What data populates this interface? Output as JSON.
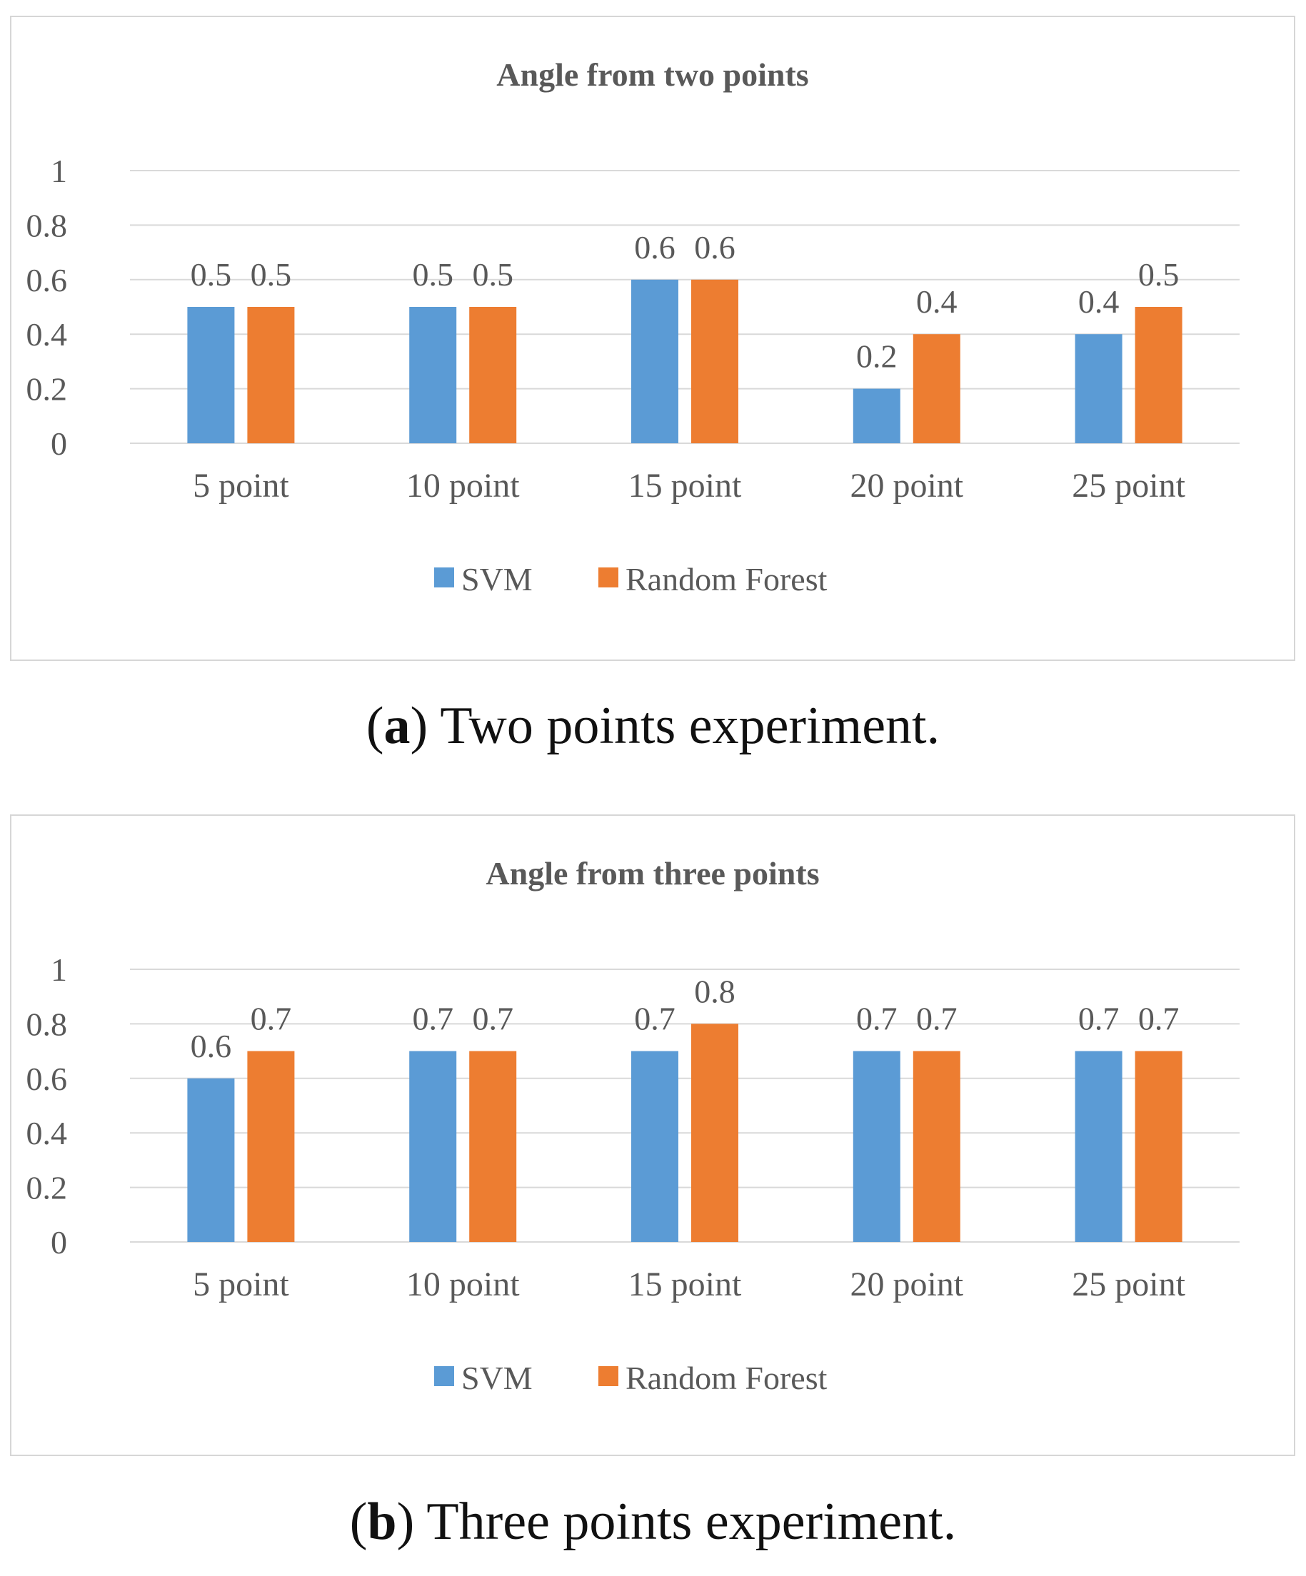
{
  "colors": {
    "svm": "#5b9bd5",
    "rf": "#ed7d31",
    "grid": "#d9d9d9",
    "border": "#d6d6d6",
    "text": "#595959"
  },
  "chart_data": [
    {
      "type": "bar",
      "title": "Angle from two points",
      "categories": [
        "5 point",
        "10 point",
        "15 point",
        "20 point",
        "25 point"
      ],
      "series": [
        {
          "name": "SVM",
          "values": [
            0.5,
            0.5,
            0.6,
            0.2,
            0.4
          ],
          "labels": [
            "0.5",
            "0.5",
            "0.6",
            "0.2",
            "0.4"
          ]
        },
        {
          "name": "Random Forest",
          "values": [
            0.5,
            0.5,
            0.6,
            0.4,
            0.5
          ],
          "labels": [
            "0.5",
            "0.5",
            "0.6",
            "0.4",
            "0.5"
          ]
        }
      ],
      "yticks": [
        "0",
        "0.2",
        "0.4",
        "0.6",
        "0.8",
        "1"
      ],
      "ylim": [
        0,
        1
      ],
      "xlabel": "",
      "ylabel": "",
      "legend": "bottom",
      "grid": true
    },
    {
      "type": "bar",
      "title": "Angle from three points",
      "categories": [
        "5 point",
        "10 point",
        "15 point",
        "20 point",
        "25 point"
      ],
      "series": [
        {
          "name": "SVM",
          "values": [
            0.6,
            0.7,
            0.7,
            0.7,
            0.7
          ],
          "labels": [
            "0.6",
            "0.7",
            "0.7",
            "0.7",
            "0.7"
          ]
        },
        {
          "name": "Random Forest",
          "values": [
            0.7,
            0.7,
            0.8,
            0.7,
            0.7
          ],
          "labels": [
            "0.7",
            "0.7",
            "0.8",
            "0.7",
            "0.7"
          ]
        }
      ],
      "yticks": [
        "0",
        "0.2",
        "0.4",
        "0.6",
        "0.8",
        "1"
      ],
      "ylim": [
        0,
        1
      ],
      "xlabel": "",
      "ylabel": "",
      "legend": "bottom",
      "grid": true
    }
  ],
  "captions": [
    {
      "letter": "a",
      "open": "(",
      "close": ")",
      "text": " Two points experiment."
    },
    {
      "letter": "b",
      "open": "(",
      "close": ")",
      "text": " Three points experiment."
    }
  ]
}
